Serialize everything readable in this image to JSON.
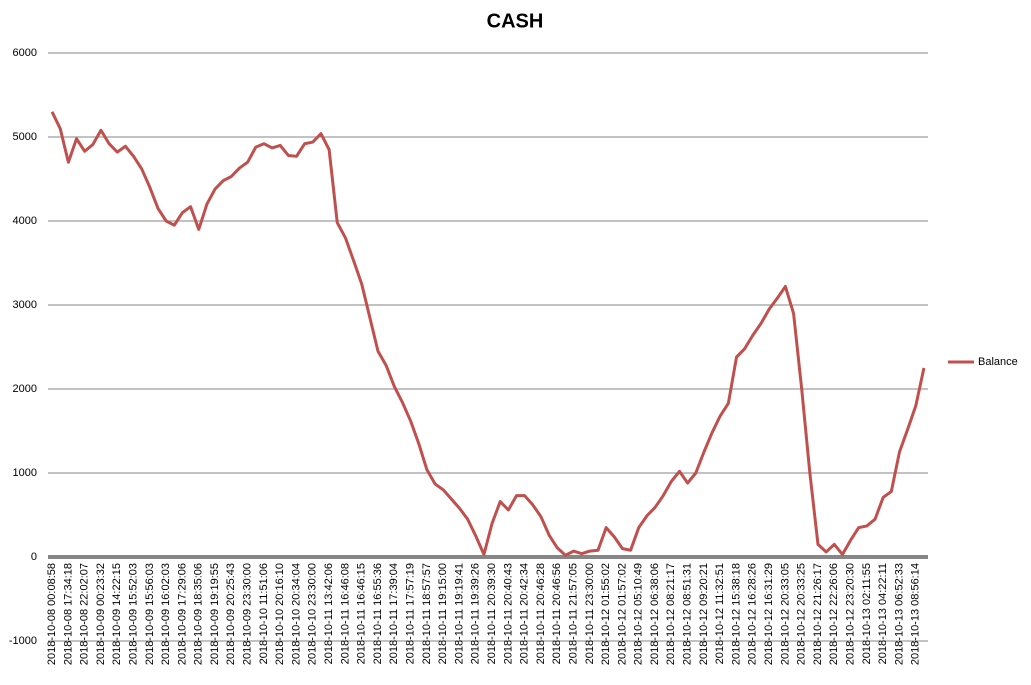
{
  "chart_data": {
    "type": "line",
    "title": "CASH",
    "categories": [
      "2018-10-08 00:08:58",
      null,
      "2018-10-08 17:34:18",
      null,
      "2018-10-08 22:02:07",
      null,
      "2018-10-09 00:23:32",
      null,
      "2018-10-09 14:22:15",
      null,
      "2018-10-09 15:52:03",
      null,
      "2018-10-09 15:56:03",
      null,
      "2018-10-09 16:02:03",
      null,
      "2018-10-09 17:29:06",
      null,
      "2018-10-09 18:35:06",
      null,
      "2018-10-09 19:19:55",
      null,
      "2018-10-09 20:25:43",
      null,
      "2018-10-09 23:30:00",
      null,
      "2018-10-10 11:51:06",
      null,
      "2018-10-10 20:16:10",
      null,
      "2018-10-10 20:34:04",
      null,
      "2018-10-10 23:30:00",
      null,
      "2018-10-11 13:42:06",
      null,
      "2018-10-11 16:46:08",
      null,
      "2018-10-11 16:46:15",
      null,
      "2018-10-11 16:55:36",
      null,
      "2018-10-11 17:39:04",
      null,
      "2018-10-11 17:57:19",
      null,
      "2018-10-11 18:57:57",
      null,
      "2018-10-11 19:15:00",
      null,
      "2018-10-11 19:19:41",
      null,
      "2018-10-11 19:39:26",
      null,
      "2018-10-11 20:39:30",
      null,
      "2018-10-11 20:40:43",
      null,
      "2018-10-11 20:42:34",
      null,
      "2018-10-11 20:46:28",
      null,
      "2018-10-11 20:46:56",
      null,
      "2018-10-11 21:57:05",
      null,
      "2018-10-11 23:30:00",
      null,
      "2018-10-12 01:55:02",
      null,
      "2018-10-12 01:57:02",
      null,
      "2018-10-12 05:10:49",
      null,
      "2018-10-12 06:38:06",
      null,
      "2018-10-12 08:21:17",
      null,
      "2018-10-12 08:51:31",
      null,
      "2018-10-12 09:20:21",
      null,
      "2018-10-12 11:32:51",
      null,
      "2018-10-12 15:38:18",
      null,
      "2018-10-12 16:28:26",
      null,
      "2018-10-12 16:31:29",
      null,
      "2018-10-12 20:33:05",
      null,
      "2018-10-12 20:33:25",
      null,
      "2018-10-12 21:26:17",
      null,
      "2018-10-12 22:26:06",
      null,
      "2018-10-12 23:20:30",
      null,
      "2018-10-13 02:11:55",
      null,
      "2018-10-13 04:22:11",
      null,
      "2018-10-13 06:52:33",
      null,
      "2018-10-13 08:56:14",
      null
    ],
    "series": [
      {
        "name": "Balance",
        "color": "#c0504d",
        "values": [
          5300,
          5100,
          4700,
          4980,
          4830,
          4910,
          5080,
          4920,
          4820,
          4890,
          4770,
          4620,
          4400,
          4150,
          4000,
          3950,
          4100,
          4170,
          3900,
          4200,
          4380,
          4480,
          4530,
          4630,
          4700,
          4880,
          4920,
          4870,
          4900,
          4780,
          4770,
          4920,
          4940,
          5040,
          4850,
          3980,
          3800,
          3530,
          3250,
          2850,
          2450,
          2280,
          2030,
          1840,
          1620,
          1350,
          1040,
          870,
          800,
          690,
          580,
          450,
          250,
          30,
          400,
          660,
          560,
          730,
          730,
          620,
          480,
          260,
          110,
          20,
          70,
          40,
          70,
          80,
          350,
          240,
          100,
          80,
          350,
          490,
          590,
          730,
          900,
          1020,
          880,
          1000,
          1250,
          1480,
          1680,
          1830,
          2380,
          2480,
          2640,
          2780,
          2950,
          3080,
          3220,
          2900,
          2000,
          1000,
          150,
          60,
          150,
          30,
          200,
          350,
          370,
          450,
          710,
          780,
          1250,
          1520,
          1800,
          2250
        ]
      }
    ],
    "ylim": [
      -1000,
      6000
    ],
    "yticks": [
      -1000,
      0,
      1000,
      2000,
      3000,
      4000,
      5000,
      6000
    ],
    "grid": true,
    "legend": "right"
  }
}
